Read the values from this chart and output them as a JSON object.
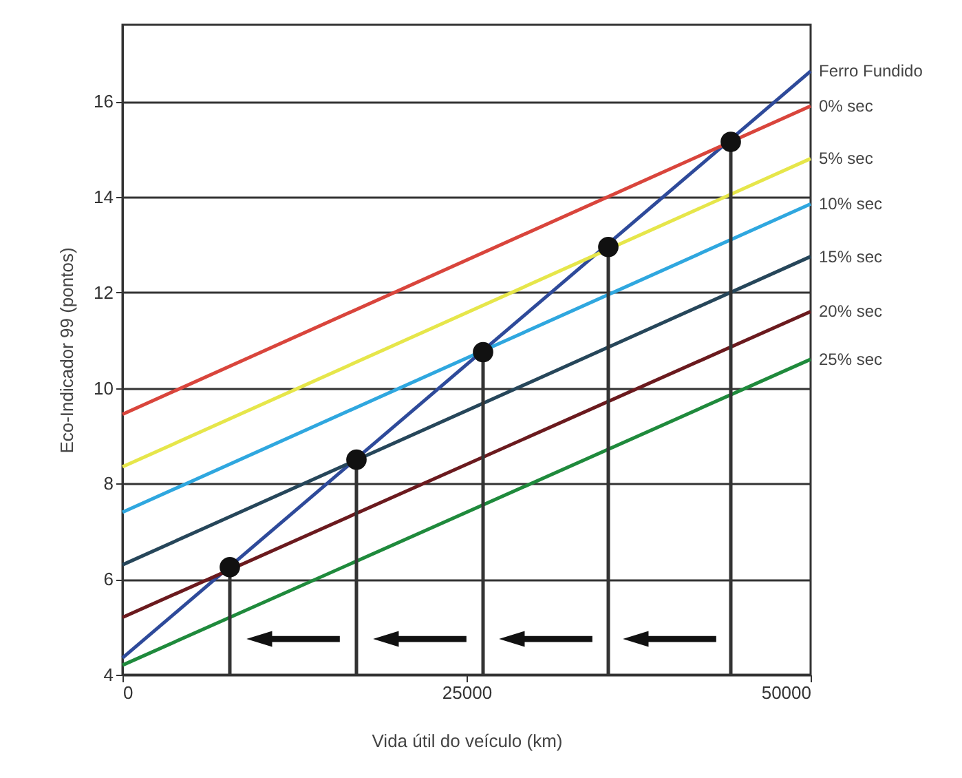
{
  "chart_data": {
    "type": "line",
    "xlabel": "Vida útil do veículo (km)",
    "ylabel": "Eco-Indicador 99 (pontos)",
    "xlim": [
      0,
      50000
    ],
    "xticks": [
      0,
      25000,
      50000
    ],
    "ylim": [
      4,
      17.6
    ],
    "yticks": [
      4,
      6,
      8,
      10,
      12,
      14,
      16
    ],
    "grid": "y",
    "series": [
      {
        "name": "Ferro Fundido",
        "color": "#2e4a9a",
        "x": [
          0,
          50000
        ],
        "values": [
          4.35,
          16.63
        ]
      },
      {
        "name": "0% sec",
        "color": "#d9453c",
        "x": [
          0,
          50000
        ],
        "values": [
          9.45,
          15.9
        ]
      },
      {
        "name": "5% sec",
        "color": "#e6e64a",
        "x": [
          0,
          50000
        ],
        "values": [
          8.35,
          14.8
        ]
      },
      {
        "name": "10% sec",
        "color": "#2fa7df",
        "x": [
          0,
          50000
        ],
        "values": [
          7.4,
          13.85
        ]
      },
      {
        "name": "15% sec",
        "color": "#26465a",
        "x": [
          0,
          50000
        ],
        "values": [
          6.3,
          12.75
        ]
      },
      {
        "name": "20% sec",
        "color": "#6b1a1e",
        "x": [
          0,
          50000
        ],
        "values": [
          5.2,
          11.6
        ]
      },
      {
        "name": "25% sec",
        "color": "#1f8a3c",
        "x": [
          0,
          50000
        ],
        "values": [
          4.2,
          10.6
        ]
      },
      {
        "type": "scatter",
        "marker": "circle",
        "color": "#111111",
        "x": [
          7800,
          17000,
          26200,
          35300,
          44200
        ],
        "values": [
          6.25,
          8.5,
          10.75,
          12.95,
          15.15
        ]
      },
      {
        "color": "#333333",
        "x": [
          7800,
          7800
        ],
        "values": [
          4,
          6.25
        ]
      },
      {
        "color": "#333333",
        "x": [
          17000,
          17000
        ],
        "values": [
          4,
          8.5
        ]
      },
      {
        "color": "#333333",
        "x": [
          26200,
          26200
        ],
        "values": [
          4,
          10.75
        ]
      },
      {
        "color": "#333333",
        "x": [
          35300,
          35300
        ],
        "values": [
          4,
          12.95
        ]
      },
      {
        "color": "#333333",
        "x": [
          44200,
          44200
        ],
        "values": [
          4,
          15.15
        ]
      }
    ]
  }
}
